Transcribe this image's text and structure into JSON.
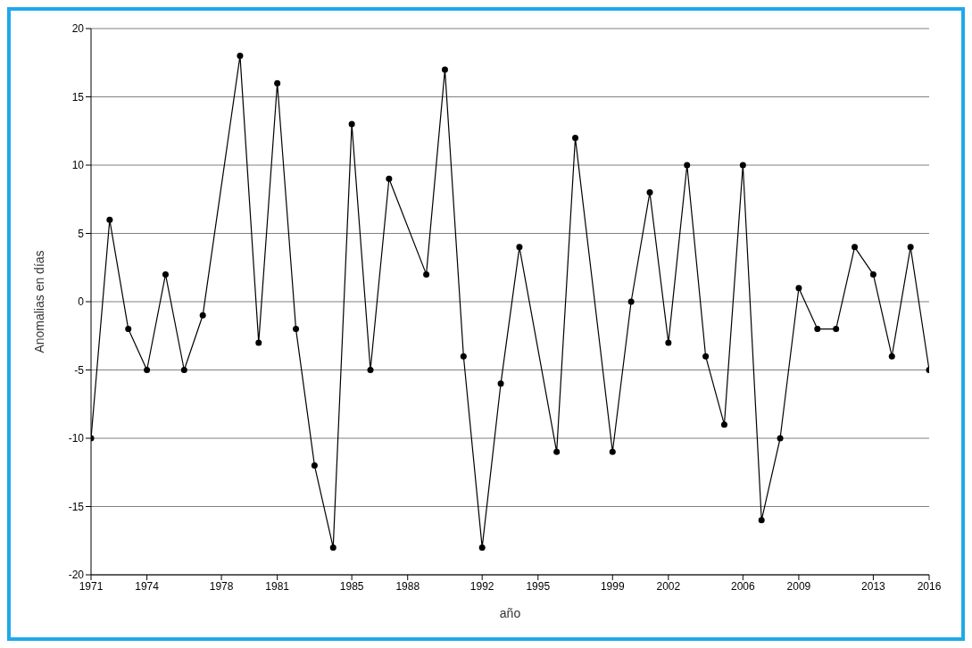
{
  "chart_data": {
    "type": "line",
    "xlabel": "año",
    "ylabel": "Anomalias en días",
    "x": [
      1971,
      1972,
      1973,
      1974,
      1975,
      1976,
      1977,
      1979,
      1980,
      1981,
      1982,
      1983,
      1984,
      1985,
      1986,
      1987,
      1989,
      1990,
      1991,
      1992,
      1993,
      1994,
      1996,
      1997,
      1999,
      2000,
      2001,
      2002,
      2003,
      2004,
      2005,
      2006,
      2007,
      2008,
      2009,
      2010,
      2011,
      2012,
      2013,
      2014,
      2015,
      2016
    ],
    "series": [
      {
        "color": "#000000",
        "values": [
          -10,
          6,
          -2,
          -5,
          2,
          -5,
          -1,
          18,
          -3,
          16,
          -2,
          -12,
          -18,
          13,
          -5,
          9,
          2,
          17,
          -4,
          -18,
          -6,
          4,
          -11,
          12,
          -11,
          0,
          8,
          -3,
          10,
          -4,
          -9,
          10,
          -16,
          -10,
          1,
          -2,
          -2,
          4,
          2,
          -4,
          4,
          -5
        ]
      }
    ],
    "xlim": [
      1971,
      2016
    ],
    "xticks": [
      1971,
      1974,
      1978,
      1981,
      1985,
      1988,
      1992,
      1995,
      1999,
      2002,
      2006,
      2009,
      2013,
      2016
    ],
    "ylim": [
      -20,
      20
    ],
    "yticks": [
      -20,
      -15,
      -10,
      -5,
      0,
      5,
      10,
      15,
      20
    ],
    "grid": "y",
    "marker": "circle",
    "line_style": "solid",
    "legend": false
  }
}
